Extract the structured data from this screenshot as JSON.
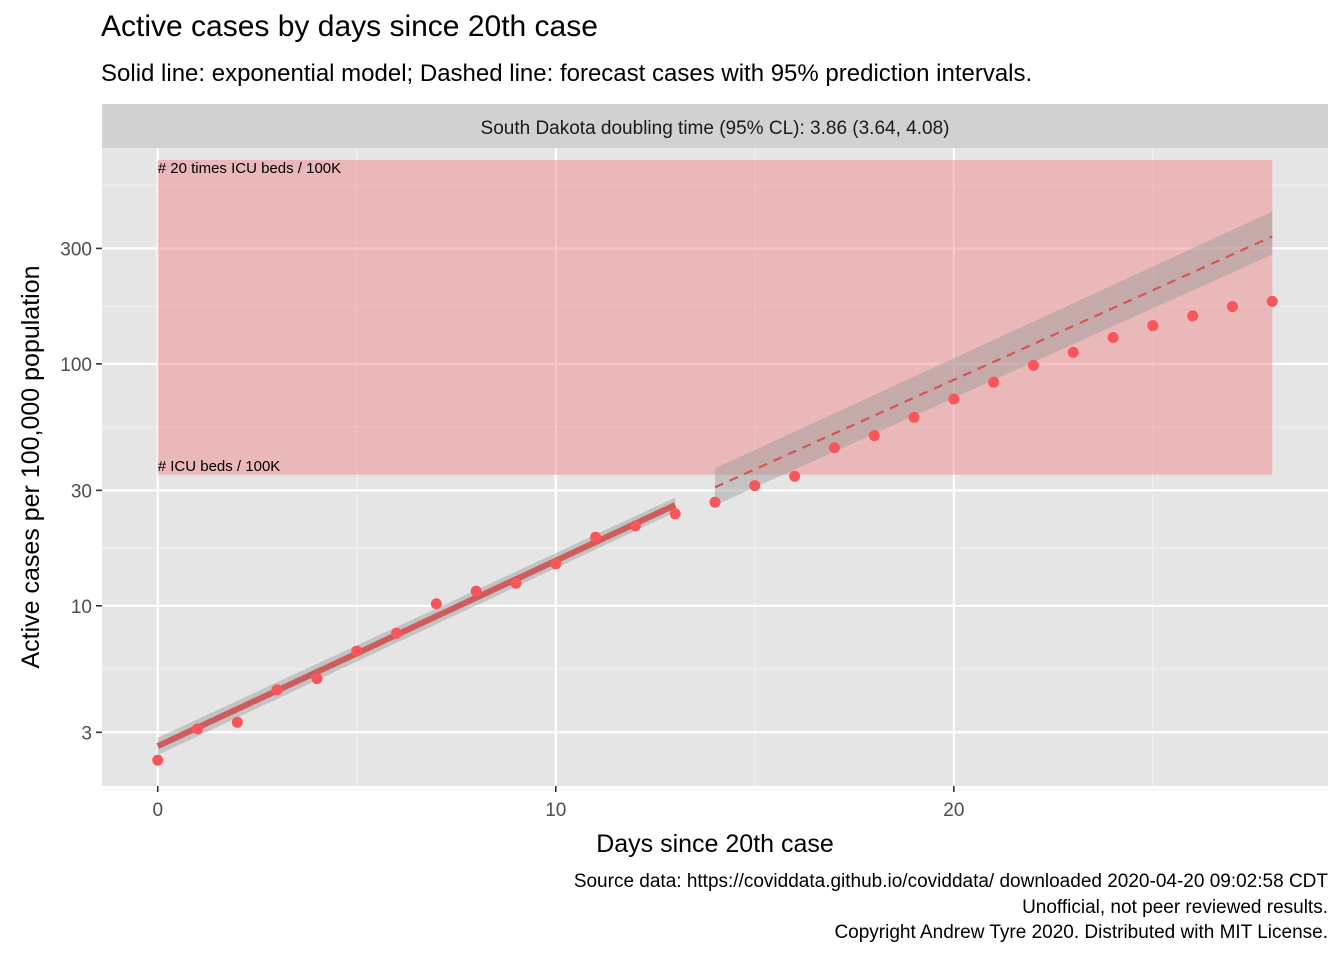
{
  "title": "Active cases by days since 20th case",
  "subtitle": "Solid line: exponential model; Dashed line: forecast cases with 95% prediction intervals.",
  "captions": [
    "Source data: https://coviddata.github.io/coviddata/ downloaded  2020-04-20 09:02:58 CDT",
    "Unofficial, not peer reviewed results.",
    "Copyright Andrew Tyre 2020. Distributed with MIT License."
  ],
  "colors": {
    "panel": "#e5e5e5",
    "strip": "#d1d1d1",
    "points": "#f8565a",
    "fit_line": "#cd5c5c",
    "band": "#f08080",
    "ribbon": "#999999"
  },
  "chart_data": {
    "type": "scatter",
    "facet_label": "South Dakota doubling time (95% CL): 3.86 (3.64, 4.08)",
    "xlabel": "Days since 20th case",
    "ylabel": "Active cases per 100,000 population",
    "x_scale": "linear",
    "y_scale": "log10",
    "xlim": [
      -1.4,
      29.4
    ],
    "ylim": [
      1.8,
      780
    ],
    "x_ticks": [
      0,
      10,
      20
    ],
    "y_ticks": [
      3,
      10,
      30,
      100,
      300
    ],
    "y_tick_labels": [
      "3",
      "10",
      "30",
      "100",
      "300"
    ],
    "grid": true,
    "observed": {
      "x": [
        0,
        1,
        2,
        3,
        4,
        5,
        6,
        7,
        8,
        9,
        10,
        11,
        12,
        13,
        14,
        15,
        16,
        17,
        18,
        19,
        20,
        21,
        22,
        23,
        24,
        25,
        26,
        27,
        28
      ],
      "y": [
        2.3,
        3.1,
        3.3,
        4.5,
        5.0,
        6.5,
        7.7,
        10.2,
        11.5,
        12.4,
        14.9,
        19.2,
        21.4,
        24.0,
        26.8,
        31.4,
        34.3,
        45.0,
        50.5,
        60.1,
        71.6,
        83.9,
        98.6,
        111.6,
        128.5,
        143.8,
        157.8,
        172.5,
        181.3
      ]
    },
    "model_fit": {
      "x": [
        0,
        13
      ],
      "y": [
        2.63,
        26.1
      ],
      "ci_lower": [
        2.42,
        24.4
      ],
      "ci_upper": [
        2.85,
        28.0
      ]
    },
    "forecast": {
      "x": [
        14,
        28
      ],
      "y": [
        30.9,
        336
      ],
      "pi_lower": [
        26.0,
        283
      ],
      "pi_upper": [
        37.0,
        426
      ]
    },
    "reference_band": {
      "x": [
        0,
        28
      ],
      "y": [
        34.8,
        696
      ],
      "labels": [
        "# ICU beds / 100K",
        "# 20 times ICU beds / 100K"
      ]
    }
  }
}
